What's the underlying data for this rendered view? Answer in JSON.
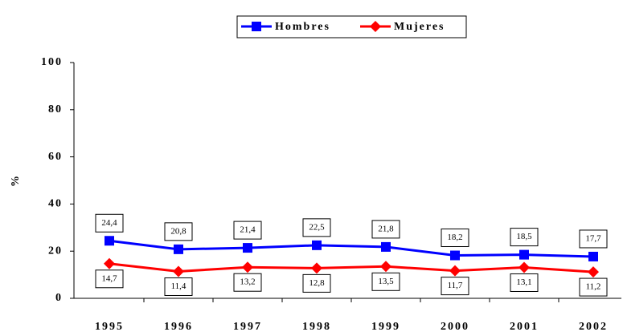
{
  "chart_data": {
    "type": "line",
    "categories": [
      "1995",
      "1996",
      "1997",
      "1998",
      "1999",
      "2000",
      "2001",
      "2002"
    ],
    "series": [
      {
        "name": "Hombres",
        "color": "#0000ff",
        "marker": "square",
        "values": [
          24.4,
          20.8,
          21.4,
          22.5,
          21.8,
          18.2,
          18.5,
          17.7
        ],
        "value_labels": [
          "24,4",
          "20,8",
          "21,4",
          "22,5",
          "21,8",
          "18,2",
          "18,5",
          "17,7"
        ]
      },
      {
        "name": "Mujeres",
        "color": "#ff0000",
        "marker": "diamond",
        "values": [
          14.7,
          11.4,
          13.2,
          12.8,
          13.5,
          11.7,
          13.1,
          11.2
        ],
        "value_labels": [
          "14,7",
          "11,4",
          "13,2",
          "12,8",
          "13,5",
          "11,7",
          "13,1",
          "11,2"
        ]
      }
    ],
    "ylabel": "%",
    "ylim": [
      0,
      100
    ],
    "yticks": [
      0,
      20,
      40,
      60,
      80,
      100
    ],
    "legend": "top"
  }
}
